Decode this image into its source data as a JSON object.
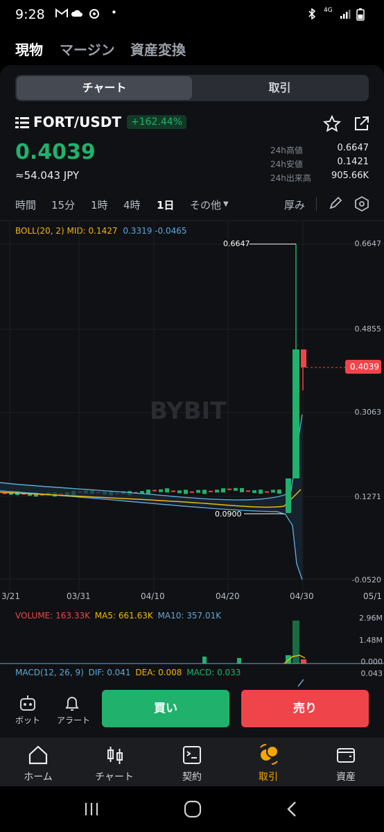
{
  "status": {
    "time": "9:28",
    "icons": [
      "gmail-icon",
      "cloud-icon",
      "sync-icon",
      "dot-icon",
      "bluetooth-icon",
      "4g-icon",
      "signal-icon",
      "battery-icon"
    ],
    "network": "4G"
  },
  "topnav": {
    "spot": "現物",
    "margin": "マージン",
    "convert": "資産変換"
  },
  "segment": {
    "chart": "チャート",
    "trade": "取引"
  },
  "pair": {
    "symbol": "FORT/USDT",
    "change": "+162.44%"
  },
  "price": {
    "last": "0.4039",
    "fiat": "≈54.043 JPY"
  },
  "stats": {
    "high_label": "24h高値",
    "high": "0.6647",
    "low_label": "24h安値",
    "low": "0.1421",
    "vol_label": "24h出来高",
    "vol": "905.66K"
  },
  "timeframes": {
    "t_time": "時間",
    "t15": "15分",
    "t1h": "1時",
    "t4h": "4時",
    "t1d": "1日",
    "other": "その他",
    "depth": "厚み",
    "active": "1日"
  },
  "indicators": {
    "boll": "BOLL(20, 2) MID: 0.1427",
    "boll_up": "0.3319",
    "boll_dn": "-0.0465",
    "volume": "VOLUME: 163.33K",
    "ma5": "MA5: 661.63K",
    "ma10": "MA10: 357.01K",
    "macd_label": "MACD(12, 26, 9)",
    "dif": "DIF: 0.041",
    "dea": "DEA: 0.008",
    "macd": "MACD: 0.033"
  },
  "price_axis": [
    "0.6647",
    "0.4855",
    "0.3063",
    "0.1271",
    "-0.0520"
  ],
  "volume_axis": [
    "2.96M",
    "1.48M",
    "0.000"
  ],
  "macd_axis": [
    "0.043"
  ],
  "date_axis": [
    "3/21",
    "03/31",
    "04/10",
    "04/20",
    "04/30",
    "05/1"
  ],
  "chart_labels": {
    "max_marker": "0.6647",
    "min_marker": "0.0900",
    "current_price": "0.4039",
    "watermark": "BYBIT"
  },
  "chart_data": {
    "type": "candlestick",
    "x": [
      "03/21",
      "03/31",
      "04/10",
      "04/20",
      "04/28",
      "04/29",
      "04/30"
    ],
    "close": [
      0.13,
      0.115,
      0.11,
      0.103,
      0.14,
      0.45,
      0.4039
    ],
    "ylim": [
      -0.052,
      0.6647
    ],
    "max": 0.6647,
    "min": 0.09
  },
  "actions": {
    "bot": "ボット",
    "alert": "アラート",
    "buy": "買い",
    "sell": "売り"
  },
  "tabs": {
    "home": "ホーム",
    "chart": "チャート",
    "contract": "契約",
    "trade": "取引",
    "assets": "資産",
    "active": "取引"
  },
  "colors": {
    "up": "#20b26c",
    "down": "#ef454a",
    "accent": "#f7a600"
  }
}
